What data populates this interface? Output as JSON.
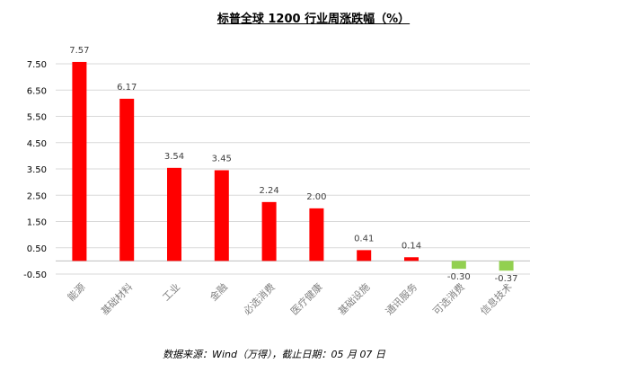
{
  "chart_data": {
    "type": "bar",
    "title": "标普全球 1200 行业周涨跌幅（%）",
    "categories": [
      "能源",
      "基础材料",
      "工业",
      "金融",
      "必选消费",
      "医疗健康",
      "基础设施",
      "通讯服务",
      "可选消费",
      "信息技术"
    ],
    "values": [
      7.57,
      6.17,
      3.54,
      3.45,
      2.24,
      2.0,
      0.41,
      0.14,
      -0.3,
      -0.37
    ],
    "value_labels": [
      "7.57",
      "6.17",
      "3.54",
      "3.45",
      "2.24",
      "2.00",
      "0.41",
      "0.14",
      "-0.30",
      "-0.37"
    ],
    "yticks": [
      "7.50",
      "6.50",
      "5.50",
      "4.50",
      "3.50",
      "2.50",
      "1.50",
      "0.50",
      "-0.50"
    ],
    "ylim": [
      -0.5,
      7.5
    ],
    "grid": true,
    "colors": {
      "positive": "#ff0000",
      "negative": "#92d050",
      "grid": "#d9d9d9",
      "axis": "#bfbfbf",
      "text": "#404040"
    }
  },
  "source": "数据来源：Wind（万得），截止日期：05 月 07 日"
}
